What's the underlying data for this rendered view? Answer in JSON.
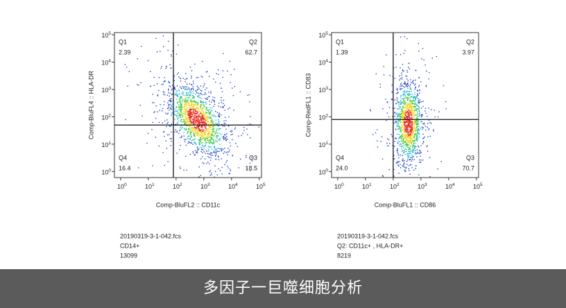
{
  "chart_data": [
    {
      "type": "quadrant",
      "log": true,
      "xlabel": "Comp-BluFL2 :: CD11c",
      "ylabel": "Comp-BluFL4 :: HLA-DR",
      "xlim": [
        0.6,
        120000
      ],
      "ylim": [
        0.6,
        120000
      ],
      "xticks": [
        {
          "value": 1,
          "label": "10",
          "power": "0"
        },
        {
          "value": 10,
          "label": "10",
          "power": "1"
        },
        {
          "value": 100,
          "label": "10",
          "power": "2"
        },
        {
          "value": 1000,
          "label": "10",
          "power": "3"
        },
        {
          "value": 10000,
          "label": "10",
          "power": "4"
        },
        {
          "value": 100000,
          "label": "10",
          "power": "5"
        }
      ],
      "yticks": [
        {
          "value": 1,
          "label": "10",
          "power": "0"
        },
        {
          "value": 10,
          "label": "10",
          "power": "1"
        },
        {
          "value": 100,
          "label": "10",
          "power": "2"
        },
        {
          "value": 1000,
          "label": "10",
          "power": "3"
        },
        {
          "value": 10000,
          "label": "10",
          "power": "4"
        },
        {
          "value": 100000,
          "label": "10",
          "power": "5"
        }
      ],
      "gate_x": 80,
      "gate_y": 50,
      "quadrant_names": [
        "Q1",
        "Q2",
        "Q3",
        "Q4"
      ],
      "values": [
        2.39,
        62.7,
        18.5,
        16.4
      ],
      "file": "20190319-3-1-042.fcs",
      "population": "CD14+",
      "count": "13099"
    },
    {
      "type": "quadrant",
      "log": true,
      "xlabel": "Comp-BluFL1 :: CD86",
      "ylabel": "Comp-RedFL1 :: CD83",
      "xlim": [
        0.6,
        120000
      ],
      "ylim": [
        0.6,
        120000
      ],
      "xticks": [
        {
          "value": 1,
          "label": "10",
          "power": "0"
        },
        {
          "value": 10,
          "label": "10",
          "power": "1"
        },
        {
          "value": 100,
          "label": "10",
          "power": "2"
        },
        {
          "value": 1000,
          "label": "10",
          "power": "3"
        },
        {
          "value": 10000,
          "label": "10",
          "power": "4"
        },
        {
          "value": 100000,
          "label": "10",
          "power": "5"
        }
      ],
      "yticks": [
        {
          "value": 1,
          "label": "10",
          "power": "0"
        },
        {
          "value": 10,
          "label": "10",
          "power": "1"
        },
        {
          "value": 100,
          "label": "10",
          "power": "2"
        },
        {
          "value": 1000,
          "label": "10",
          "power": "3"
        },
        {
          "value": 10000,
          "label": "10",
          "power": "4"
        },
        {
          "value": 100000,
          "label": "10",
          "power": "5"
        }
      ],
      "gate_x": 100,
      "gate_y": 80,
      "quadrant_names": [
        "Q1",
        "Q2",
        "Q3",
        "Q4"
      ],
      "values": [
        1.39,
        3.97,
        70.7,
        24
      ],
      "value_labels": [
        "1.39",
        "3.97",
        "70.7",
        "24.0"
      ],
      "file": "20190319-3-1-042.fcs",
      "population": "Q2: CD11c+ , HLA-DR+",
      "count": "8219"
    }
  ],
  "caption": "多因子一巨噬细胞分析"
}
